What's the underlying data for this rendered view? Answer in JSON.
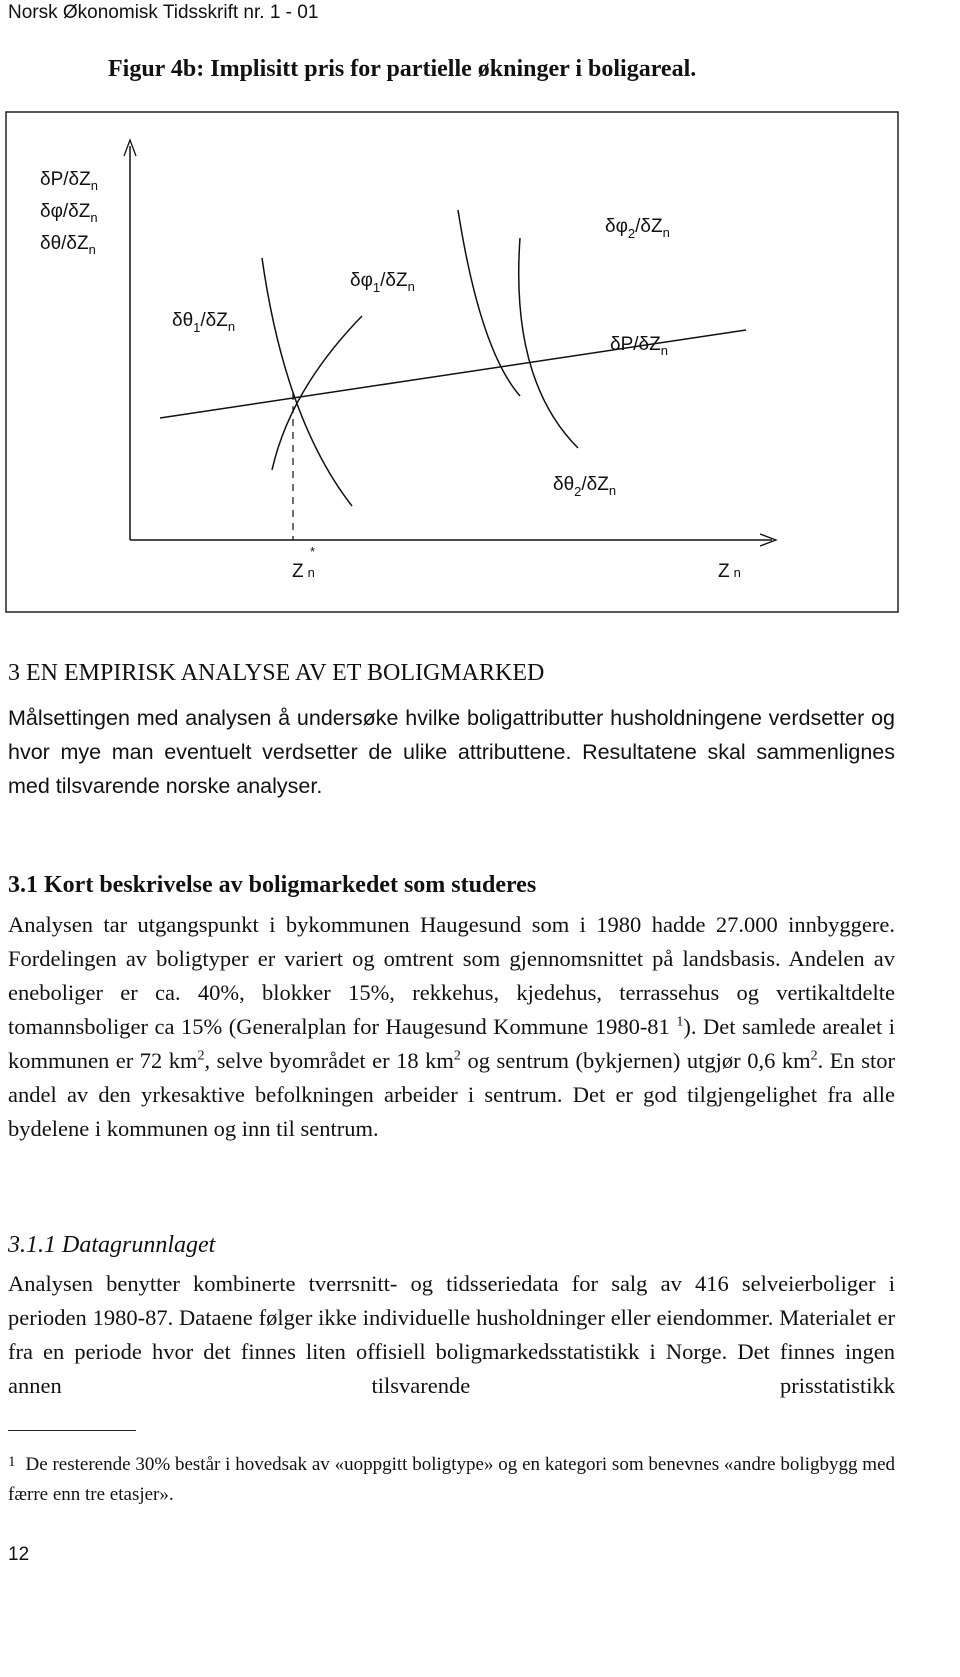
{
  "header": {
    "running_title": "Norsk Økonomisk Tidsskrift nr. 1 - 01"
  },
  "figure": {
    "title": "Figur 4b: Implisitt pris for partielle økninger i boligareal.",
    "y_axis_labels": [
      {
        "base": "δP/δZ",
        "sub": "n"
      },
      {
        "base": "δφ/δZ",
        "sub": "n"
      },
      {
        "base": "δθ/δZ",
        "sub": "n"
      }
    ],
    "curve_labels": [
      {
        "base": "δφ",
        "sub": "2",
        "base2": "/δZ",
        "sub2": "n"
      },
      {
        "base": "δφ",
        "sub": "1",
        "base2": "/δZ",
        "sub2": "n"
      },
      {
        "base": "δθ",
        "sub": "1",
        "base2": "/δZ",
        "sub2": "n"
      },
      {
        "base": "δP/δZ",
        "sub": "n"
      },
      {
        "base": "δθ",
        "sub": "2",
        "base2": "/δZ",
        "sub2": "n"
      }
    ],
    "x_axis_labels": [
      {
        "base": "Z",
        "sub": "n",
        "sup": "*"
      },
      {
        "base": "Z",
        "sub": "n"
      }
    ]
  },
  "section": {
    "heading": "3 EN EMPIRISK ANALYSE AV ET BOLIGMARKED",
    "paragraph": "Målsettingen med analysen å undersøke hvilke boligattributter husholdningene verdsetter og hvor mye man eventuelt verdsetter de ulike attributtene. Resultatene skal sammenlignes med tilsvarende norske analyser."
  },
  "subsection": {
    "heading": "3.1 Kort beskrivelse av boligmarkedet som studeres",
    "paragraph": [
      "Analysen tar utgangspunkt i bykommunen Haugesund som i 1980 hadde 27.000 innbyggere. Fordelingen av boligtyper er variert og omtrent som gjennomsnittet på landsbasis. Andelen av eneboliger er ca. 40%, blokker 15%, rekkehus, kjedehus, terrassehus og vertikaltdelte tomannsboliger ca 15% (Generalplan for Haugesund Kommune 1980-81 ",
      "1",
      "). Det samlede arealet i kommunen er 72 km",
      "2",
      ", selve byområdet er 18 km",
      "2",
      " og sentrum (bykjernen) utgjør 0,6 km",
      "2",
      ". En stor andel av den yrkesaktive befolkningen arbeider i sentrum. Det er god tilgjengelighet fra alle bydelene i kommunen og inn til sentrum."
    ]
  },
  "subsubsection": {
    "heading": "3.1.1 Datagrunnlaget",
    "paragraph": "Analysen benytter kombinerte tverrsnitt- og tidsseriedata for salg av 416 selveierboliger i perioden 1980-87. Dataene følger ikke individuelle husholdninger eller eiendommer. Materialet er fra en periode hvor det finnes liten offisiell boligmarkedsstatistikk i Norge. Det finnes ingen annen tilsvarende prisstatistikk"
  },
  "footnote": {
    "marker": "1",
    "text": "De resterende 30% består i hovedsak av «uoppgitt boligtype» og en kategori som benevnes «andre boligbygg med færre enn tre etasjer»."
  },
  "page_number": "12"
}
